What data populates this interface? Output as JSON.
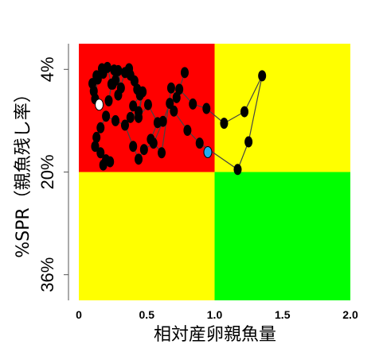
{
  "chart_data": {
    "type": "scatter",
    "title": "",
    "xlabel": "相対産卵親魚量",
    "ylabel": "%SPR（親魚残し率）",
    "xlim": [
      0,
      2.0
    ],
    "x_ticks": [
      "0",
      "0.5",
      "1.0",
      "1.5",
      "2.0"
    ],
    "y_ticks": [
      "4%",
      "20%",
      "36%"
    ],
    "y_tick_values": [
      4,
      20,
      36
    ],
    "y_reversed": true,
    "zones": [
      {
        "name": "overfished-overfishing",
        "color": "#ff0000",
        "x": [
          0,
          1.0
        ],
        "y": [
          0,
          20
        ]
      },
      {
        "name": "overfishing-only",
        "color": "#ffff00",
        "x": [
          1.0,
          2.0
        ],
        "y": [
          0,
          20
        ]
      },
      {
        "name": "overfished-only",
        "color": "#ffff00",
        "x": [
          0,
          1.0
        ],
        "y": [
          20,
          40
        ]
      },
      {
        "name": "healthy",
        "color": "#00ff00",
        "x": [
          1.0,
          2.0
        ],
        "y": [
          20,
          40
        ]
      }
    ],
    "series": [
      {
        "line_color": "#444444",
        "point_color": "#000000",
        "x": [
          0.13,
          0.1,
          0.11,
          0.12,
          0.14,
          0.17,
          0.18,
          0.21,
          0.24,
          0.22,
          0.26,
          0.25,
          0.27,
          0.29,
          0.31,
          0.29,
          0.34,
          0.37,
          0.38,
          0.41,
          0.43,
          0.45,
          0.4,
          0.38,
          0.44,
          0.47,
          0.44,
          0.51,
          0.58,
          0.53,
          0.61,
          0.68,
          0.72,
          0.78,
          0.74,
          0.84,
          0.94,
          1.07,
          1.22,
          1.35,
          1.25,
          1.17,
          0.89,
          0.8,
          0.7,
          0.67,
          0.62,
          0.55,
          0.48,
          0.44,
          0.4,
          0.34,
          0.27,
          0.2,
          0.16,
          0.13,
          0.12,
          0.16,
          0.2,
          0.23,
          0.18
        ],
        "y": [
          5.0,
          6.2,
          7.4,
          8.6,
          5.5,
          3.9,
          4.6,
          3.7,
          6.3,
          8.9,
          4.1,
          6.3,
          5.7,
          4.2,
          6.9,
          8.0,
          4.5,
          3.9,
          4.9,
          5.8,
          7.1,
          8.0,
          9.7,
          11.5,
          10.6,
          7.5,
          11.5,
          9.5,
          12.3,
          14.9,
          17.0,
          6.9,
          8.4,
          4.5,
          7.1,
          9.4,
          10.1,
          12.4,
          10.6,
          5.0,
          15.3,
          19.6,
          15.5,
          13.5,
          10.5,
          9.3,
          12.1,
          15.5,
          16.5,
          18.0,
          16.0,
          12.7,
          12.0,
          11.3,
          13.1,
          14.6,
          16.0,
          17.0,
          18.1,
          18.4,
          18.9
        ]
      }
    ],
    "markers": [
      {
        "color": "#ffffff",
        "x": 0.15,
        "y": 9.5
      },
      {
        "color": "#22aaee",
        "x": 0.95,
        "y": 16.9
      }
    ]
  }
}
